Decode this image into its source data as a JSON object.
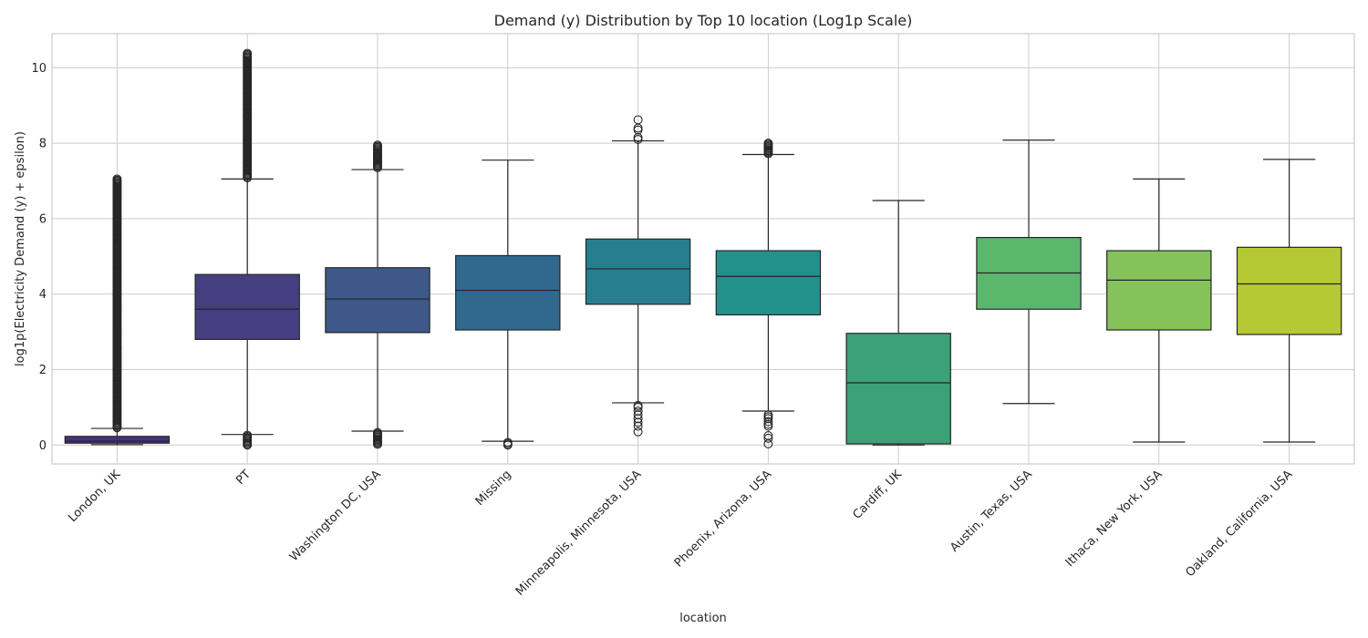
{
  "chart_data": {
    "type": "boxplot",
    "title": "Demand (y) Distribution by Top 10 location (Log1p Scale)",
    "xlabel": "location",
    "ylabel": "log1p(Electricity Demand (y) + epsilon)",
    "ylim": [
      -0.5,
      10.9
    ],
    "yticks": [
      0,
      2,
      4,
      6,
      8,
      10
    ],
    "grid": true,
    "categories": [
      "London, UK",
      "PT",
      "Washington DC, USA",
      "Missing",
      "Minneapolis, Minnesota, USA",
      "Phoenix, Arizona, USA",
      "Cardiff, UK",
      "Austin, Texas, USA",
      "Ithaca, New York, USA",
      "Oakland, California, USA"
    ],
    "colors": [
      "#46327e",
      "#453f82",
      "#3e5889",
      "#31688e",
      "#277f8e",
      "#21918c",
      "#3ca176",
      "#5ab86d",
      "#86c25a",
      "#b5c934"
    ],
    "boxes": [
      {
        "whislo": 0.01,
        "q1": 0.05,
        "med": 0.1,
        "q3": 0.23,
        "whishi": 0.44,
        "outliers_high": {
          "from": 0.46,
          "to": 7.05,
          "dense": true
        },
        "outliers_low": null
      },
      {
        "whislo": 0.28,
        "q1": 2.8,
        "med": 3.6,
        "q3": 4.52,
        "whishi": 7.05,
        "outliers_high": {
          "from": 7.08,
          "to": 10.38,
          "dense": true
        },
        "outliers_low": {
          "from": 0.0,
          "to": 0.26,
          "dense": true
        }
      },
      {
        "whislo": 0.37,
        "q1": 2.98,
        "med": 3.87,
        "q3": 4.7,
        "whishi": 7.3,
        "outliers_high": {
          "from": 7.35,
          "to": 7.95,
          "dense": true
        },
        "outliers_low": {
          "from": 0.02,
          "to": 0.33,
          "dense": true
        }
      },
      {
        "whislo": 0.1,
        "q1": 3.05,
        "med": 4.1,
        "q3": 5.02,
        "whishi": 7.55,
        "outliers_high": null,
        "outliers_low": {
          "from": 0.0,
          "to": 0.07,
          "dense": true
        }
      },
      {
        "whislo": 1.12,
        "q1": 3.73,
        "med": 4.67,
        "q3": 5.46,
        "whishi": 8.06,
        "outliers_high": {
          "points": [
            8.1,
            8.15,
            8.35,
            8.4,
            8.62
          ]
        },
        "outliers_low": {
          "points": [
            0.35,
            0.5,
            0.6,
            0.7,
            0.8,
            0.9,
            1.0,
            1.05
          ]
        }
      },
      {
        "whislo": 0.9,
        "q1": 3.45,
        "med": 4.47,
        "q3": 5.15,
        "whishi": 7.7,
        "outliers_high": {
          "from": 7.72,
          "to": 8.0,
          "dense": true
        },
        "outliers_low": {
          "points": [
            0.03,
            0.18,
            0.25,
            0.5,
            0.55,
            0.62,
            0.7,
            0.75,
            0.8
          ]
        }
      },
      {
        "whislo": 0.0,
        "q1": 0.03,
        "med": 1.65,
        "q3": 2.96,
        "whishi": 6.48,
        "outliers_high": null,
        "outliers_low": null
      },
      {
        "whislo": 1.1,
        "q1": 3.6,
        "med": 4.56,
        "q3": 5.5,
        "whishi": 8.08,
        "outliers_high": null,
        "outliers_low": null
      },
      {
        "whislo": 0.08,
        "q1": 3.05,
        "med": 4.37,
        "q3": 5.15,
        "whishi": 7.05,
        "outliers_high": null,
        "outliers_low": null
      },
      {
        "whislo": 0.08,
        "q1": 2.93,
        "med": 4.27,
        "q3": 5.24,
        "whishi": 7.57,
        "outliers_high": null,
        "outliers_low": null
      }
    ]
  }
}
